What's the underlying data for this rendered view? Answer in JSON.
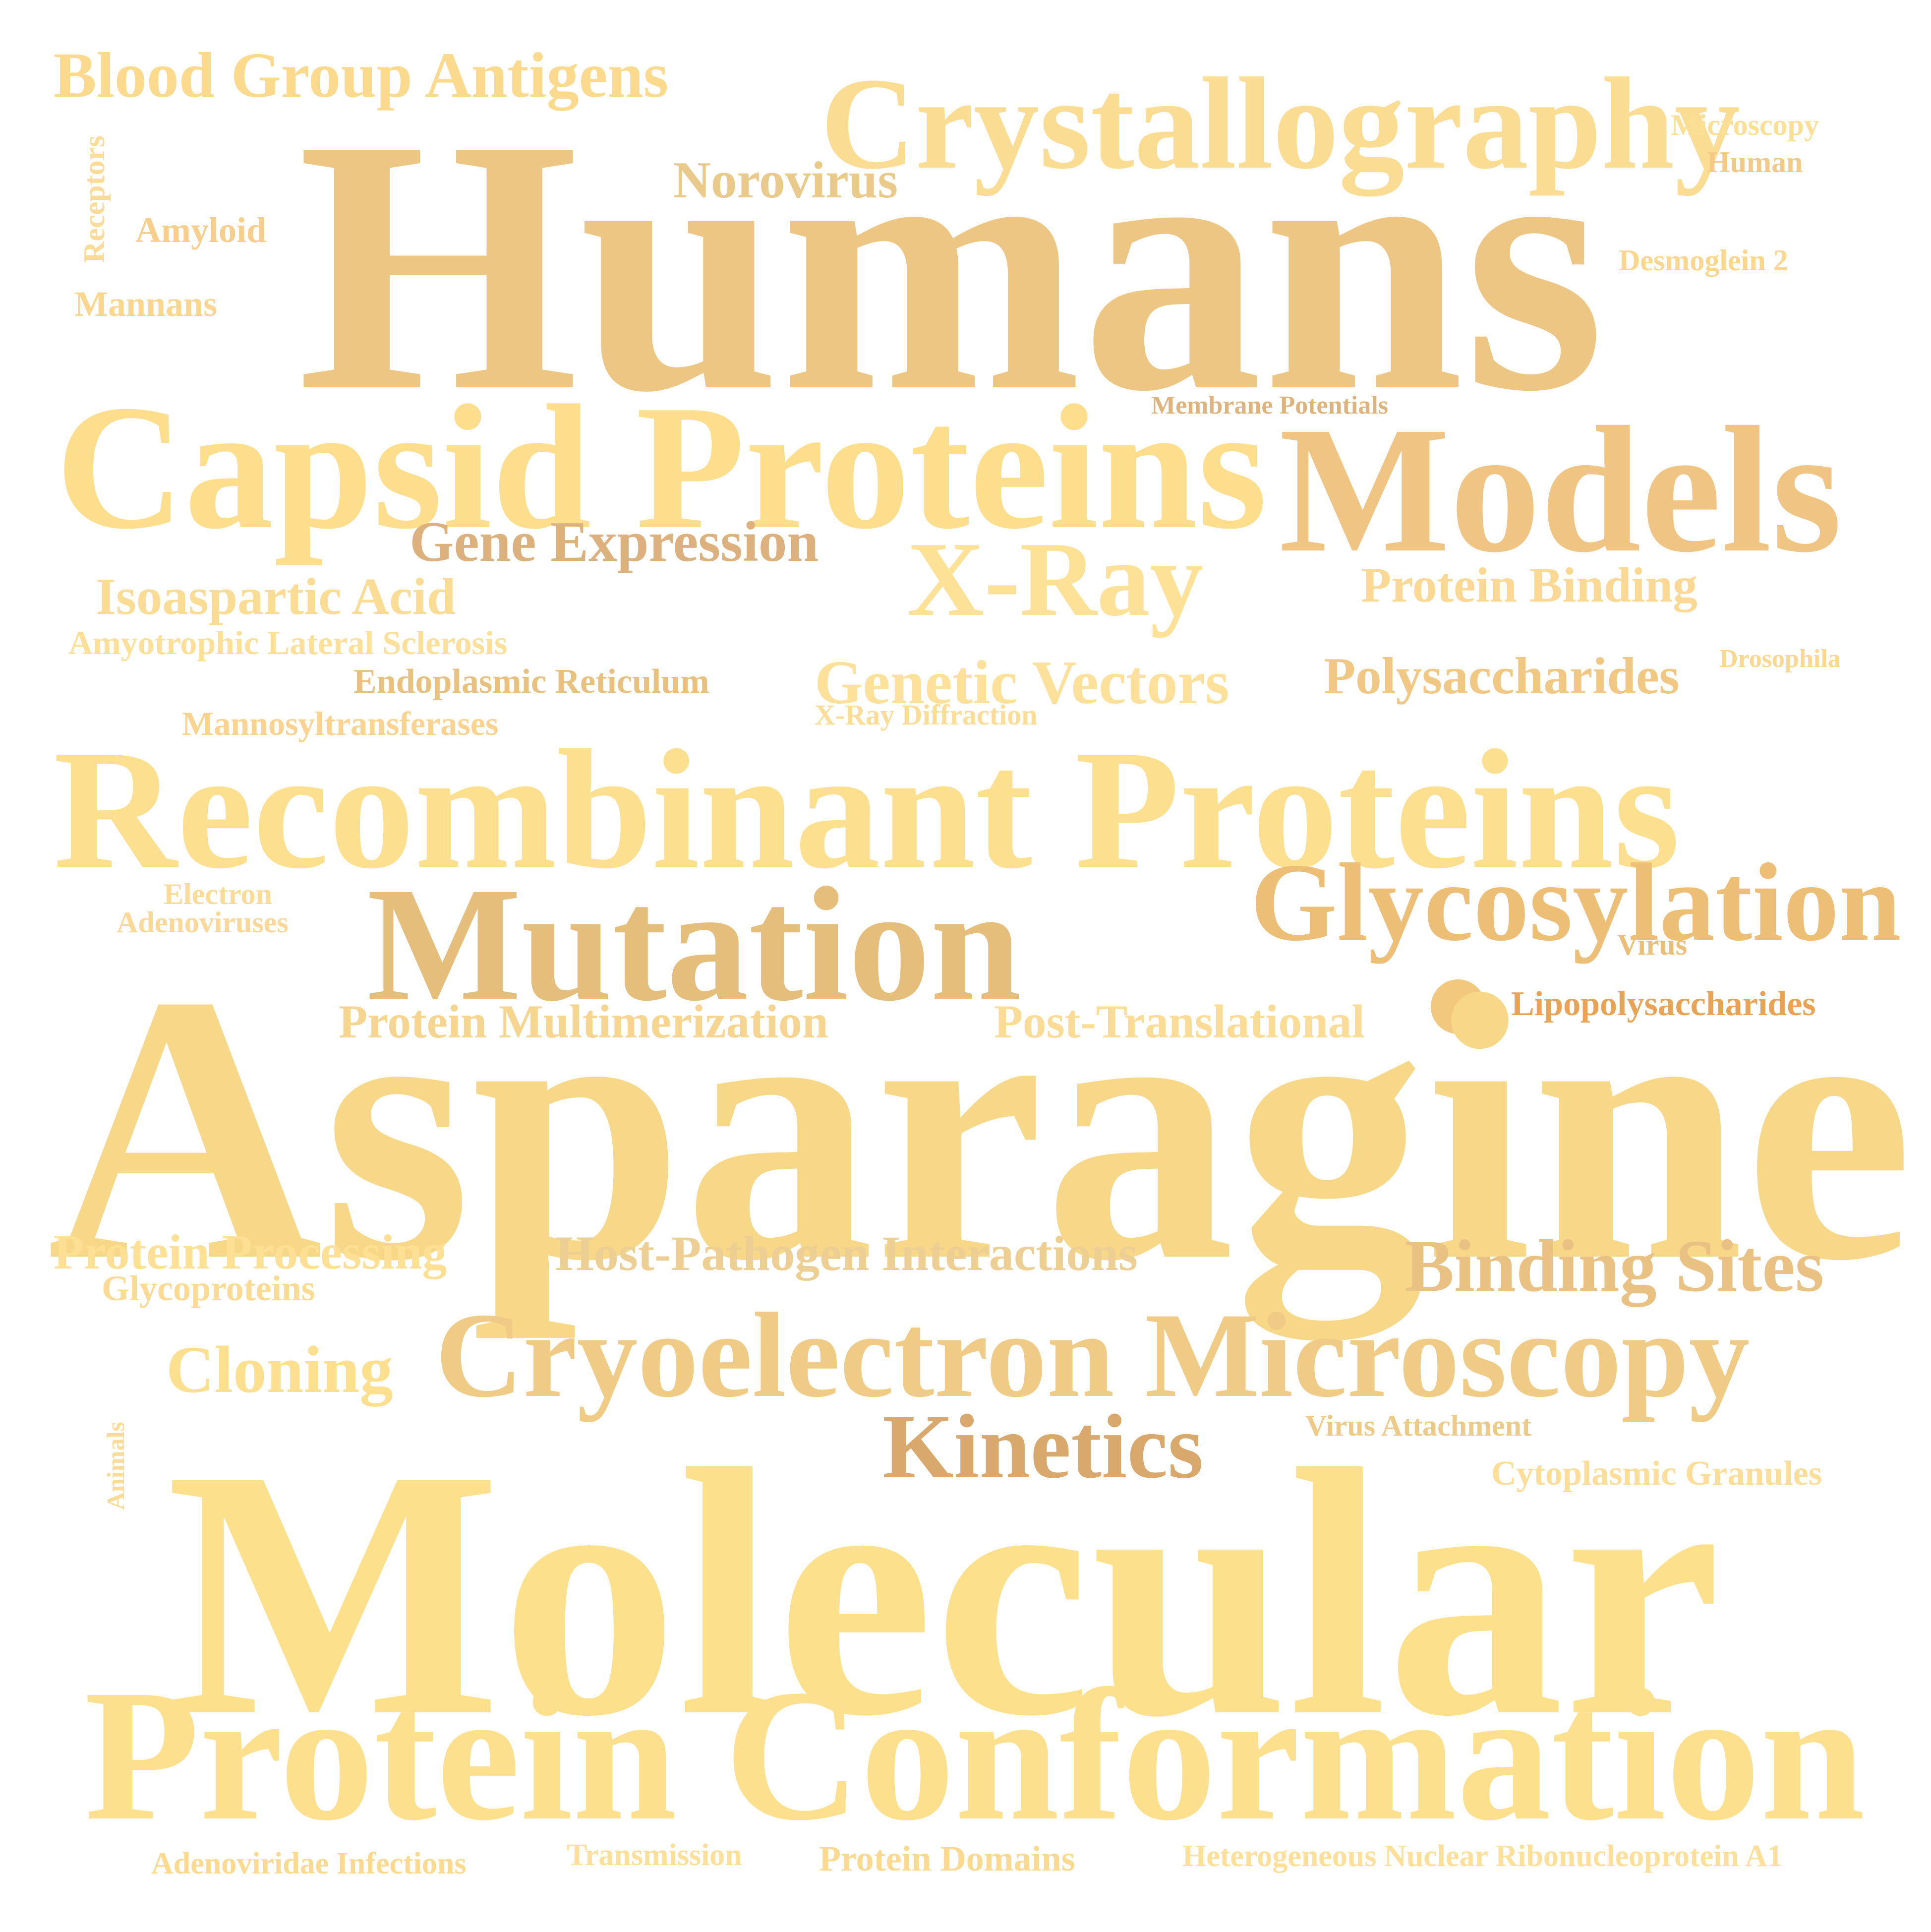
{
  "words": [
    {
      "text": "Blood Group Antigens",
      "color": "#FBDA8E"
    },
    {
      "text": "Crystallography",
      "color": "#FADD92"
    },
    {
      "text": "Microscopy",
      "color": "#FBDF95"
    },
    {
      "text": "Human",
      "color": "#F3C985"
    },
    {
      "text": "Receptors",
      "color": "#FBDB98"
    },
    {
      "text": "Norovirus",
      "color": "#EACA8A"
    },
    {
      "text": "Amyloid",
      "color": "#F7CE8C"
    },
    {
      "text": "Humans",
      "color": "#EDC684"
    },
    {
      "text": "Desmoglein 2",
      "color": "#FBD78E"
    },
    {
      "text": "Mannans",
      "color": "#FBD68F"
    },
    {
      "text": "Membrane Potentials",
      "color": "#DEB47C"
    },
    {
      "text": "Capsid Proteins",
      "color": "#FDDE8C"
    },
    {
      "text": "Models",
      "color": "#F0C584"
    },
    {
      "text": "Gene Expression",
      "color": "#DDB17D"
    },
    {
      "text": "X-Ray",
      "color": "#FCE197"
    },
    {
      "text": "Protein Binding",
      "color": "#FBD894"
    },
    {
      "text": "Isoaspartic Acid",
      "color": "#FBDC95"
    },
    {
      "text": "Amyotrophic Lateral Sclerosis",
      "color": "#FCE09A"
    },
    {
      "text": "Endoplasmic Reticulum",
      "color": "#E9C17E"
    },
    {
      "text": "Genetic Vectors",
      "color": "#FDE19B"
    },
    {
      "text": "Polysaccharides",
      "color": "#F1C883"
    },
    {
      "text": "Drosophila",
      "color": "#FBD88F"
    },
    {
      "text": "Mannosyltransferases",
      "color": "#F9D38F"
    },
    {
      "text": "X-Ray Diffraction",
      "color": "#FCDD98"
    },
    {
      "text": "Recombinant Proteins",
      "color": "#FDE08F"
    },
    {
      "text": "Glycosylation",
      "color": "#EDBE75"
    },
    {
      "text": "Electron",
      "color": "#FBDB98"
    },
    {
      "text": "Adenoviruses",
      "color": "#FBD897"
    },
    {
      "text": "Mutation",
      "color": "#E6BE7C"
    },
    {
      "text": "Virus",
      "color": "#EDBE78"
    },
    {
      "text": "Lipopolysaccharides",
      "color": "#E8A454"
    },
    {
      "text": "Protein Multimerization",
      "color": "#F6D591"
    },
    {
      "text": "Post-Translational",
      "color": "#FBDC96"
    },
    {
      "text": "Asparagine",
      "color": "#F7D889"
    },
    {
      "text": "Protein Processing",
      "color": "#FDE094"
    },
    {
      "text": "Host-Pathogen Interactions",
      "color": "#EDCF93"
    },
    {
      "text": "Binding Sites",
      "color": "#E9C283"
    },
    {
      "text": "Glycoproteins",
      "color": "#FBDB93"
    },
    {
      "text": "Cloning",
      "color": "#FDE08F"
    },
    {
      "text": "Cryoelectron Microscopy",
      "color": "#EFCB85"
    },
    {
      "text": "Animals",
      "color": "#FBDB98"
    },
    {
      "text": "Kinetics",
      "color": "#D9A86C"
    },
    {
      "text": "Virus Attachment",
      "color": "#EECA88"
    },
    {
      "text": "Cytoplasmic Granules",
      "color": "#FCDE99"
    },
    {
      "text": "Molecular",
      "color": "#FCE08C"
    },
    {
      "text": "Protein Conformation",
      "color": "#FDE08E"
    },
    {
      "text": "Adenoviridae Infections",
      "color": "#FBD98F"
    },
    {
      "text": "Transmission",
      "color": "#FCDF9A"
    },
    {
      "text": "Protein Domains",
      "color": "#FBDA90"
    },
    {
      "text": "Heterogeneous Nuclear Ribonucleoprotein A1",
      "color": "#FCE09A"
    }
  ],
  "dot_color": "#F1C87E"
}
